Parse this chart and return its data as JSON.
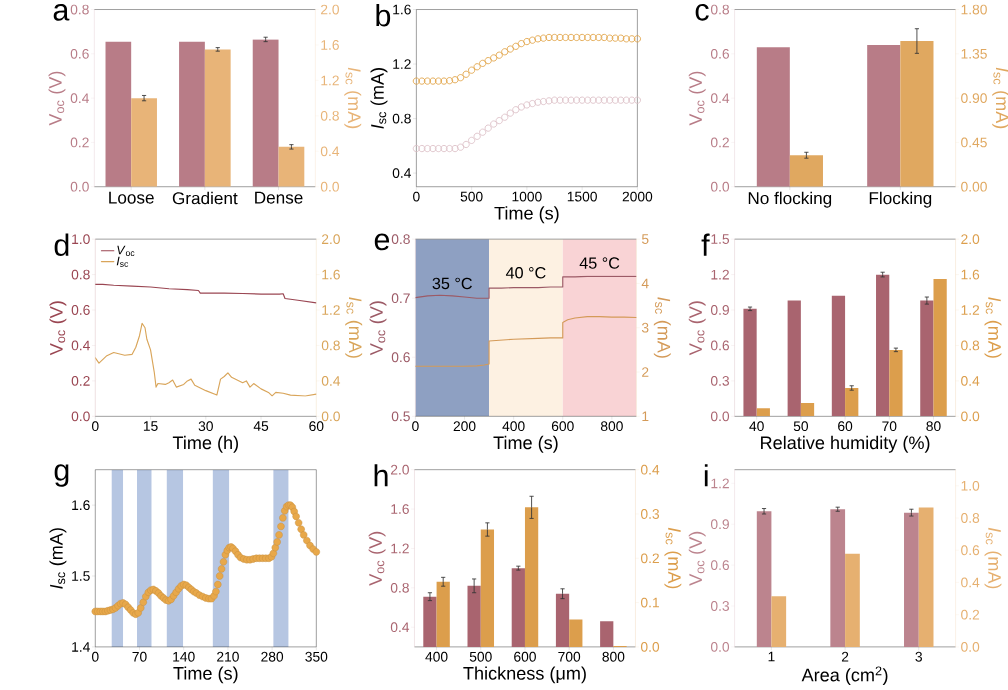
{
  "chart_data": [
    {
      "type": "bar",
      "title": "a",
      "categories": [
        "Loose",
        "Gradient",
        "Dense"
      ],
      "ylabel": "V$_{oc}$ (V)",
      "y2label": "*I*$_{sc}$ (mA)",
      "ylim": [
        0,
        0.8
      ],
      "yticks": [
        {
          "value": 0,
          "label": "0.0"
        },
        0.2,
        0.4,
        0.6,
        0.8
      ],
      "y2lim": [
        0,
        2
      ],
      "y2ticks": [
        {
          "value": 0,
          "label": "0.0"
        },
        0.4,
        0.8,
        1.2,
        1.6,
        {
          "value": 2,
          "label": "2.0"
        }
      ],
      "series": [
        {
          "color": "#b87c87",
          "values": [
            0.655,
            0.655,
            0.665
          ],
          "errors": [
            null,
            null,
            0.01
          ]
        },
        {
          "axis": "y2",
          "color": "#e8b478",
          "values": [
            1.0,
            1.55,
            0.45
          ],
          "errors": [
            0.03,
            0.02,
            0.025
          ]
        }
      ]
    },
    {
      "type": "scatter",
      "title": "b",
      "xlabel": "Time (s)",
      "ylabel": "*I*$_{sc}$ (mA)",
      "xlim": [
        0,
        2000
      ],
      "xticks": [
        0,
        500,
        1000,
        1500,
        2000
      ],
      "ylim": [
        0.3,
        1.6
      ],
      "yticks": [
        0.4,
        0.8,
        1.2,
        1.6
      ],
      "marker": "circle",
      "x": [
        0,
        50,
        100,
        150,
        200,
        250,
        300,
        350,
        400,
        450,
        500,
        550,
        600,
        650,
        700,
        750,
        800,
        850,
        900,
        950,
        1000,
        1050,
        1100,
        1150,
        1200,
        1250,
        1300,
        1350,
        1400,
        1450,
        1500,
        1550,
        1600,
        1650,
        1700,
        1750,
        1800,
        1850,
        1900,
        1950,
        2000
      ],
      "series": [
        {
          "color": "#e1a143",
          "values": [
            1.075,
            1.075,
            1.075,
            1.075,
            1.075,
            1.075,
            1.078,
            1.085,
            1.1,
            1.125,
            1.155,
            1.18,
            1.205,
            1.225,
            1.245,
            1.265,
            1.29,
            1.31,
            1.33,
            1.35,
            1.365,
            1.375,
            1.385,
            1.39,
            1.395,
            1.395,
            1.395,
            1.395,
            1.395,
            1.395,
            1.395,
            1.395,
            1.395,
            1.395,
            1.395,
            1.39,
            1.39,
            1.39,
            1.385,
            1.385,
            1.385
          ]
        },
        {
          "color": "#dcbfc6",
          "values": [
            0.58,
            0.58,
            0.58,
            0.58,
            0.58,
            0.58,
            0.58,
            0.58,
            0.59,
            0.61,
            0.64,
            0.67,
            0.7,
            0.73,
            0.76,
            0.785,
            0.81,
            0.84,
            0.865,
            0.885,
            0.9,
            0.91,
            0.92,
            0.925,
            0.93,
            0.935,
            0.935,
            0.935,
            0.935,
            0.935,
            0.935,
            0.935,
            0.935,
            0.935,
            0.935,
            0.935,
            0.935,
            0.935,
            0.935,
            0.935,
            0.935
          ]
        }
      ]
    },
    {
      "type": "bar",
      "title": "c",
      "categories": [
        "No flocking",
        "Flocking"
      ],
      "ylabel": "V$_{oc}$ (V)",
      "y2label": "*I*$_{sc}$ (mA)",
      "ylim": [
        0,
        0.8
      ],
      "yticks": [
        {
          "value": 0,
          "label": "0.0"
        },
        0.2,
        0.4,
        0.6,
        0.8
      ],
      "y2lim": [
        0,
        1.8
      ],
      "y2ticks": [
        {
          "value": 0,
          "label": "0.00"
        },
        0.45,
        {
          "value": 0.9,
          "label": "0.90"
        },
        1.35,
        {
          "value": 1.8,
          "label": "1.80"
        }
      ],
      "series": [
        {
          "color": "#b87c87",
          "values": [
            0.63,
            0.64
          ]
        },
        {
          "axis": "y2",
          "color": "#e0a860",
          "values": [
            0.32,
            1.48
          ],
          "errors": [
            0.03,
            0.125
          ]
        }
      ]
    },
    {
      "type": "line",
      "title": "d",
      "xlabel": "Time (h)",
      "ylabel": "V$_{oc}$ (V)",
      "y2label": "*I*$_{sc}$ (mA)",
      "xlim": [
        0,
        60
      ],
      "xticks": [
        0,
        15,
        30,
        45,
        60
      ],
      "ylim": [
        0,
        1
      ],
      "yticks": [
        {
          "value": 0,
          "label": "0.0"
        },
        0.2,
        0.4,
        0.6,
        0.8,
        {
          "value": 1,
          "label": "1.0"
        }
      ],
      "y2lim": [
        0,
        2
      ],
      "y2ticks": [
        {
          "value": 0,
          "label": "0.0"
        },
        0.4,
        0.8,
        1.2,
        1.6,
        {
          "value": 2,
          "label": "2.0"
        }
      ],
      "legend": "top left",
      "series": [
        {
          "name": "*V*$_{oc}$",
          "color": "#9a4652",
          "x": [
            0,
            2,
            5,
            10,
            15,
            20,
            25,
            28,
            28.5,
            35,
            40,
            45,
            50,
            51,
            51.5,
            55,
            60
          ],
          "values": [
            0.745,
            0.745,
            0.74,
            0.735,
            0.73,
            0.72,
            0.715,
            0.71,
            0.695,
            0.695,
            0.693,
            0.69,
            0.69,
            0.692,
            0.665,
            0.655,
            0.64
          ]
        },
        {
          "name": "*I*$_{sc}$",
          "axis": "y2",
          "color": "#d9a55a",
          "x": [
            0,
            1,
            3,
            5,
            8,
            10,
            11,
            12,
            12.7,
            13.5,
            14,
            15,
            16,
            16.5,
            17,
            19,
            20,
            21,
            22,
            24,
            25,
            26,
            27,
            30,
            33,
            34,
            35,
            36,
            37,
            40,
            41,
            42,
            43,
            45,
            47,
            48,
            49,
            51,
            53,
            57,
            60
          ],
          "values": [
            0.66,
            0.6,
            0.68,
            0.72,
            0.69,
            0.7,
            0.78,
            0.91,
            1.05,
            1.0,
            0.87,
            0.75,
            0.5,
            0.33,
            0.37,
            0.36,
            0.38,
            0.41,
            0.33,
            0.36,
            0.4,
            0.42,
            0.35,
            0.29,
            0.24,
            0.42,
            0.45,
            0.49,
            0.44,
            0.38,
            0.4,
            0.33,
            0.37,
            0.31,
            0.27,
            0.23,
            0.27,
            0.26,
            0.24,
            0.23,
            0.25
          ]
        }
      ]
    },
    {
      "type": "line",
      "title": "e",
      "xlabel": "Time (s)",
      "ylabel": "V$_{oc}$ (V)",
      "y2label": "*I*$_{sc}$ (mA)",
      "xlim": [
        0,
        900
      ],
      "xticks": [
        0,
        200,
        400,
        600,
        800
      ],
      "ylim": [
        0.5,
        0.8
      ],
      "yticks": [
        0.5,
        0.6,
        0.7,
        0.8
      ],
      "y2lim": [
        1,
        5
      ],
      "y2ticks": [
        1,
        2,
        3,
        4,
        5
      ],
      "bands": [
        {
          "axis": "x",
          "from": 0,
          "to": 300,
          "label": "35 °C",
          "color": "#8ea0c2"
        },
        {
          "axis": "x",
          "from": 300,
          "to": 600,
          "label": "40 °C",
          "color": "#fdf1e2"
        },
        {
          "axis": "x",
          "from": 600,
          "to": 900,
          "label": "45 °C",
          "color": "#f9d3d5"
        }
      ],
      "series": [
        {
          "color": "#9c5a66",
          "x": [
            0,
            50,
            100,
            150,
            200,
            250,
            300,
            300,
            350,
            400,
            450,
            500,
            550,
            600,
            600,
            650,
            700,
            750,
            800,
            850,
            900
          ],
          "values": [
            0.701,
            0.704,
            0.705,
            0.704,
            0.702,
            0.7,
            0.7,
            0.717,
            0.717,
            0.718,
            0.718,
            0.718,
            0.719,
            0.719,
            0.736,
            0.736,
            0.737,
            0.737,
            0.737,
            0.737,
            0.737
          ]
        },
        {
          "axis": "y2",
          "color": "#d49a58",
          "x": [
            0,
            50,
            100,
            150,
            200,
            250,
            280,
            300,
            300,
            350,
            400,
            450,
            500,
            550,
            600,
            600,
            620,
            650,
            700,
            750,
            800,
            850,
            900
          ],
          "values": [
            2.13,
            2.13,
            2.13,
            2.13,
            2.13,
            2.14,
            2.16,
            2.18,
            2.7,
            2.72,
            2.74,
            2.75,
            2.76,
            2.77,
            2.77,
            3.12,
            3.18,
            3.22,
            3.25,
            3.25,
            3.24,
            3.24,
            3.23
          ]
        }
      ]
    },
    {
      "type": "bar",
      "title": "f",
      "categories": [
        "40",
        "50",
        "60",
        "70",
        "80"
      ],
      "xlabel": "Relative humidity (%)",
      "ylabel": "V$_{oc}$ (V)",
      "y2label": "*I*$_{sc}$ (mA)",
      "ylim": [
        0,
        1.5
      ],
      "yticks": [
        {
          "value": 0,
          "label": "0.0"
        },
        0.3,
        0.6,
        0.9,
        1.2,
        1.5
      ],
      "y2lim": [
        0,
        2
      ],
      "y2ticks": [
        {
          "value": 0,
          "label": "0.0"
        },
        0.4,
        0.8,
        1.2,
        1.6,
        {
          "value": 2,
          "label": "2.0"
        }
      ],
      "series": [
        {
          "color": "#a9646f",
          "values": [
            0.91,
            0.98,
            1.02,
            1.2,
            0.98
          ],
          "errors": [
            0.015,
            null,
            null,
            0.02,
            0.03
          ]
        },
        {
          "axis": "y2",
          "color": "#dc9e4c",
          "values": [
            0.09,
            0.15,
            0.32,
            0.75,
            1.55
          ],
          "errors": [
            null,
            null,
            0.025,
            0.02,
            null
          ]
        }
      ]
    },
    {
      "type": "scatter",
      "title": "g",
      "xlabel": "Time (s)",
      "ylabel": "*I*$_{sc}$ (mA)",
      "xlim": [
        0,
        350
      ],
      "xticks": [
        0,
        70,
        140,
        210,
        280,
        350
      ],
      "ylim": [
        1.4,
        1.65
      ],
      "yticks": [
        1.4,
        1.5,
        1.6
      ],
      "marker": "circle",
      "bands": [
        {
          "axis": "x",
          "from": 26,
          "to": 44,
          "color": "#b6c6e2"
        },
        {
          "axis": "x",
          "from": 66,
          "to": 89,
          "color": "#b6c6e2"
        },
        {
          "axis": "x",
          "from": 113,
          "to": 139,
          "color": "#b6c6e2"
        },
        {
          "axis": "x",
          "from": 186,
          "to": 212,
          "color": "#b6c6e2"
        },
        {
          "axis": "x",
          "from": 282,
          "to": 306,
          "color": "#b6c6e2"
        }
      ],
      "series": [
        {
          "color": "#e8a84a",
          "x": [
            0,
            4,
            8,
            12,
            16,
            20,
            24,
            28,
            32,
            36,
            40,
            44,
            48,
            52,
            56,
            60,
            64,
            68,
            72,
            76,
            80,
            84,
            88,
            92,
            96,
            100,
            104,
            108,
            112,
            116,
            120,
            124,
            128,
            132,
            136,
            140,
            144,
            148,
            152,
            156,
            160,
            165,
            170,
            175,
            180,
            184,
            188,
            191,
            194,
            197,
            200,
            203,
            206,
            209,
            212,
            215,
            218,
            222,
            226,
            230,
            235,
            240,
            245,
            250,
            255,
            260,
            265,
            270,
            275,
            279,
            282,
            285,
            288,
            291,
            294,
            297,
            300,
            303,
            306,
            309,
            312,
            315,
            318,
            322,
            326,
            330,
            335,
            340,
            345,
            350
          ],
          "values": [
            1.45,
            1.45,
            1.45,
            1.45,
            1.45,
            1.451,
            1.452,
            1.453,
            1.455,
            1.458,
            1.461,
            1.462,
            1.46,
            1.456,
            1.452,
            1.448,
            1.446,
            1.448,
            1.455,
            1.463,
            1.471,
            1.477,
            1.48,
            1.481,
            1.479,
            1.476,
            1.472,
            1.469,
            1.466,
            1.465,
            1.467,
            1.472,
            1.477,
            1.482,
            1.486,
            1.488,
            1.487,
            1.484,
            1.481,
            1.478,
            1.476,
            1.473,
            1.471,
            1.469,
            1.468,
            1.468,
            1.472,
            1.478,
            1.488,
            1.5,
            1.51,
            1.52,
            1.53,
            1.536,
            1.54,
            1.541,
            1.539,
            1.535,
            1.53,
            1.526,
            1.524,
            1.523,
            1.523,
            1.524,
            1.525,
            1.525,
            1.525,
            1.525,
            1.525,
            1.527,
            1.532,
            1.54,
            1.548,
            1.558,
            1.57,
            1.582,
            1.592,
            1.598,
            1.6,
            1.6,
            1.597,
            1.591,
            1.584,
            1.575,
            1.566,
            1.558,
            1.55,
            1.543,
            1.538,
            1.534
          ]
        }
      ]
    },
    {
      "type": "bar",
      "title": "h",
      "categories": [
        "400",
        "500",
        "600",
        "700",
        "800"
      ],
      "xlabel": "Thickness (μm)",
      "ylabel": "V$_{oc}$ (V)",
      "y2label": "*I*$_{sc}$ (mA)",
      "ylim": [
        0.2,
        2
      ],
      "yticks": [
        0.4,
        0.8,
        1.2,
        1.6,
        {
          "value": 2,
          "label": "2.0"
        }
      ],
      "y2lim": [
        0,
        0.4
      ],
      "y2ticks": [
        {
          "value": 0,
          "label": "0.0"
        },
        0.1,
        0.2,
        0.3,
        0.4
      ],
      "series": [
        {
          "color": "#a9646f",
          "values": [
            0.71,
            0.82,
            1.0,
            0.74,
            0.46
          ],
          "errors": [
            0.04,
            0.07,
            0.02,
            0.05,
            null
          ]
        },
        {
          "axis": "y2",
          "color": "#dc9e4c",
          "values": [
            0.147,
            0.265,
            0.315,
            0.062,
            0.002
          ],
          "errors": [
            0.01,
            0.015,
            0.025,
            null,
            null
          ]
        }
      ]
    },
    {
      "type": "bar",
      "title": "i",
      "categories": [
        "1",
        "2",
        "3"
      ],
      "xlabel": "Area (cm$^{2}$)",
      "ylabel": "V$_{oc}$ (V)",
      "y2label": "*I*$_{sc}$ (mA)",
      "ylim": [
        0,
        1.3
      ],
      "yticks": [
        {
          "value": 0,
          "label": "0.0"
        },
        0.3,
        0.6,
        0.9,
        1.2
      ],
      "y2lim": [
        0,
        1.1
      ],
      "y2ticks": [
        {
          "value": 0,
          "label": "0.0"
        },
        0.2,
        0.4,
        0.6,
        0.8,
        {
          "value": 1,
          "label": "1.0"
        }
      ],
      "series": [
        {
          "color": "#bc848e",
          "values": [
            0.995,
            1.01,
            0.985
          ],
          "errors": [
            0.02,
            0.015,
            0.025
          ]
        },
        {
          "axis": "y2",
          "color": "#e6b070",
          "values": [
            0.314,
            0.578,
            0.865
          ]
        }
      ]
    }
  ]
}
